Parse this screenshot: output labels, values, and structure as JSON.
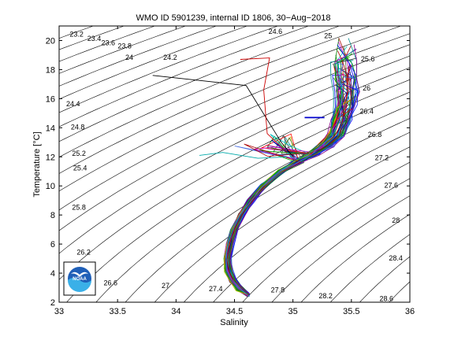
{
  "chart_data": {
    "type": "line",
    "title": "WMO ID 5901239, internal ID 1806, 30−Aug−2018",
    "xlabel": "Salinity",
    "ylabel": "Temperature [°C]",
    "xlim": [
      33,
      36
    ],
    "ylim": [
      2,
      21
    ],
    "xticks": [
      "33",
      "33.5",
      "34",
      "34.5",
      "35",
      "35.5",
      "36"
    ],
    "yticks": [
      "2",
      "4",
      "6",
      "8",
      "10",
      "12",
      "14",
      "16",
      "18",
      "20"
    ],
    "grid": false,
    "logo": "NOAA",
    "logo_text": "NOAA",
    "density_contours": [
      {
        "label": "23.2",
        "sigma": 23.2,
        "label_at": [
          33.15,
          20.4
        ]
      },
      {
        "label": "23.4",
        "sigma": 23.4,
        "label_at": [
          33.3,
          20.1
        ]
      },
      {
        "label": "23.6",
        "sigma": 23.6,
        "label_at": [
          33.42,
          19.8
        ]
      },
      {
        "label": "23.8",
        "sigma": 23.8,
        "label_at": [
          33.56,
          19.6
        ]
      },
      {
        "label": "24",
        "sigma": 24.0,
        "label_at": [
          33.6,
          18.8
        ]
      },
      {
        "label": "24.2",
        "sigma": 24.2,
        "label_at": [
          33.95,
          18.8
        ]
      },
      {
        "label": "24.4",
        "sigma": 24.4,
        "label_at": [
          33.12,
          15.6
        ]
      },
      {
        "label": "24.6",
        "sigma": 24.6,
        "label_at": [
          34.85,
          20.6
        ]
      },
      {
        "label": "24.8",
        "sigma": 24.8,
        "label_at": [
          33.16,
          14.0
        ]
      },
      {
        "label": "25",
        "sigma": 25.0,
        "label_at": [
          35.3,
          20.3
        ]
      },
      {
        "label": "25.2",
        "sigma": 25.2,
        "label_at": [
          33.17,
          12.2
        ]
      },
      {
        "label": "25.4",
        "sigma": 25.4,
        "label_at": [
          33.18,
          11.2
        ]
      },
      {
        "label": "25.6",
        "sigma": 25.6,
        "label_at": [
          35.64,
          18.7
        ]
      },
      {
        "label": "25.8",
        "sigma": 25.8,
        "label_at": [
          33.17,
          8.5
        ]
      },
      {
        "label": "26",
        "sigma": 26.0,
        "label_at": [
          35.63,
          16.7
        ]
      },
      {
        "label": "26.2",
        "sigma": 26.2,
        "label_at": [
          33.21,
          5.4
        ]
      },
      {
        "label": "26.4",
        "sigma": 26.4,
        "label_at": [
          35.63,
          15.1
        ]
      },
      {
        "label": "26.6",
        "sigma": 26.6,
        "label_at": [
          33.44,
          3.3
        ]
      },
      {
        "label": "26.8",
        "sigma": 26.8,
        "label_at": [
          35.7,
          13.5
        ]
      },
      {
        "label": "27",
        "sigma": 27.0,
        "label_at": [
          33.91,
          3.1
        ]
      },
      {
        "label": "27.2",
        "sigma": 27.2,
        "label_at": [
          35.76,
          11.9
        ]
      },
      {
        "label": "27.4",
        "sigma": 27.4,
        "label_at": [
          34.34,
          2.9
        ]
      },
      {
        "label": "27.6",
        "sigma": 27.6,
        "label_at": [
          35.84,
          10.0
        ]
      },
      {
        "label": "27.8",
        "sigma": 27.8,
        "label_at": [
          34.87,
          2.8
        ]
      },
      {
        "label": "28",
        "sigma": 28.0,
        "label_at": [
          35.88,
          7.6
        ]
      },
      {
        "label": "28.2",
        "sigma": 28.2,
        "label_at": [
          35.28,
          2.4
        ]
      },
      {
        "label": "28.4",
        "sigma": 28.4,
        "label_at": [
          35.88,
          5.0
        ]
      },
      {
        "label": "28.6",
        "sigma": 28.6,
        "label_at": [
          35.8,
          2.2
        ]
      }
    ],
    "profiles": {
      "count": 70,
      "deep_path": [
        [
          34.62,
          2.5
        ],
        [
          34.55,
          2.9
        ],
        [
          34.49,
          3.5
        ],
        [
          34.45,
          4.2
        ],
        [
          34.44,
          5.0
        ],
        [
          34.46,
          6.0
        ],
        [
          34.5,
          7.0
        ],
        [
          34.56,
          8.0
        ],
        [
          34.64,
          9.0
        ],
        [
          34.75,
          10.0
        ],
        [
          34.9,
          11.0
        ],
        [
          35.05,
          11.7
        ],
        [
          35.17,
          12.2
        ],
        [
          35.28,
          12.8
        ],
        [
          35.37,
          13.5
        ],
        [
          35.42,
          14.5
        ],
        [
          35.45,
          15.5
        ],
        [
          35.46,
          16.5
        ],
        [
          35.45,
          17.5
        ],
        [
          35.44,
          18.5
        ]
      ],
      "spread": [
        [
          34.62,
          2.5,
          0.01
        ],
        [
          34.55,
          2.9,
          0.03
        ],
        [
          34.49,
          3.5,
          0.03
        ],
        [
          34.45,
          4.2,
          0.03
        ],
        [
          34.44,
          5.0,
          0.03
        ],
        [
          34.46,
          6.0,
          0.03
        ],
        [
          34.5,
          7.0,
          0.03
        ],
        [
          34.56,
          8.0,
          0.025
        ],
        [
          34.64,
          9.0,
          0.025
        ],
        [
          34.75,
          10.0,
          0.025
        ],
        [
          34.9,
          11.0,
          0.03
        ],
        [
          35.05,
          11.7,
          0.04
        ],
        [
          35.17,
          12.2,
          0.05
        ],
        [
          35.28,
          12.8,
          0.06
        ],
        [
          35.37,
          13.5,
          0.07
        ],
        [
          35.42,
          14.5,
          0.08
        ],
        [
          35.45,
          15.5,
          0.08
        ],
        [
          35.46,
          16.5,
          0.09
        ],
        [
          35.45,
          17.5,
          0.1
        ],
        [
          35.44,
          18.5,
          0.1
        ]
      ],
      "branch_point": [
        35.0,
        11.9
      ],
      "outliers": [
        {
          "color": "#000000",
          "points": [
            [
              33.8,
              17.6
            ],
            [
              34.6,
              16.9
            ],
            [
              34.9,
              13.0
            ],
            [
              35.0,
              12.0
            ]
          ]
        },
        {
          "color": "#cc0000",
          "points": [
            [
              34.55,
              18.7
            ],
            [
              34.8,
              18.8
            ],
            [
              34.75,
              16.6
            ],
            [
              34.78,
              13.6
            ],
            [
              34.95,
              12.3
            ]
          ]
        },
        {
          "color": "#00aaaa",
          "points": [
            [
              34.2,
              12.1
            ],
            [
              34.4,
              12.3
            ],
            [
              34.7,
              11.9
            ],
            [
              34.95,
              12.0
            ]
          ]
        },
        {
          "color": "#0000cc",
          "points": [
            [
              35.1,
              14.7
            ],
            [
              35.27,
              14.7
            ]
          ]
        }
      ],
      "colors": [
        "#0000ff",
        "#008000",
        "#ff0000",
        "#00bfbf",
        "#bf00bf",
        "#bfbf00",
        "#404040",
        "#0000aa",
        "#00aa00",
        "#aa0000",
        "#008b8b",
        "#8b008b",
        "#556b2f",
        "#4169e1"
      ]
    }
  }
}
